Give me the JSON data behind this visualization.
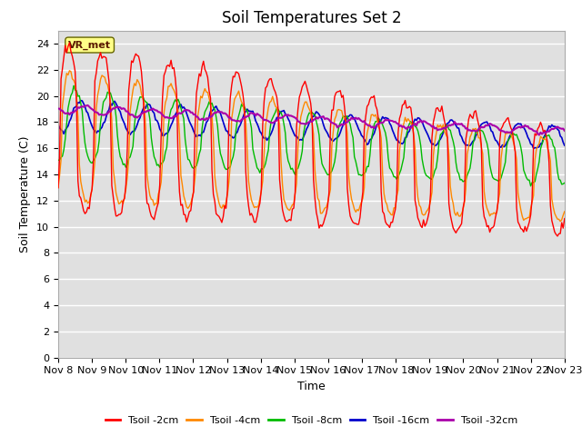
{
  "title": "Soil Temperatures Set 2",
  "xlabel": "Time",
  "ylabel": "Soil Temperature (C)",
  "ylim": [
    0,
    25
  ],
  "yticks": [
    0,
    2,
    4,
    6,
    8,
    10,
    12,
    14,
    16,
    18,
    20,
    22,
    24
  ],
  "x_tick_labels": [
    "Nov 8",
    "Nov 9",
    "Nov 10",
    "Nov 11",
    "Nov 12",
    "Nov 13",
    "Nov 14",
    "Nov 15",
    "Nov 16",
    "Nov 17",
    "Nov 18",
    "Nov 19",
    "Nov 20",
    "Nov 21",
    "Nov 22",
    "Nov 23"
  ],
  "colors": {
    "2cm": "#ff0000",
    "4cm": "#ff8800",
    "8cm": "#00bb00",
    "16cm": "#0000cc",
    "32cm": "#aa00aa"
  },
  "legend_labels": [
    "Tsoil -2cm",
    "Tsoil -4cm",
    "Tsoil -8cm",
    "Tsoil -16cm",
    "Tsoil -32cm"
  ],
  "annotation_text": "VR_met",
  "bg_color": "#e0e0e0",
  "fig_bg": "#ffffff",
  "grid_color": "#ffffff",
  "title_fontsize": 12,
  "axis_fontsize": 9,
  "tick_fontsize": 8
}
